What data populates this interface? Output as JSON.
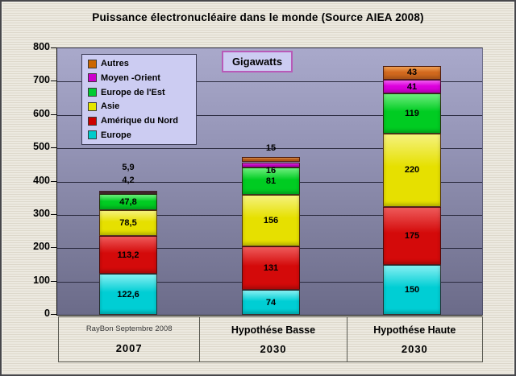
{
  "chart_data": {
    "type": "bar",
    "subtype": "stacked-vertical",
    "title": "Puissance électronucléaire dans le monde (Source AIEA 2008)",
    "unit_label": "Gigawatts",
    "ylim": [
      0,
      800
    ],
    "ytick_step": 100,
    "grid": "horizontal",
    "legend_position": "top-left-inside",
    "legend": [
      {
        "name": "Autres",
        "color": "#cc6600"
      },
      {
        "name": "Moyen -Orient",
        "color": "#cc00cc"
      },
      {
        "name": "Europe de l'Est",
        "color": "#00cc33"
      },
      {
        "name": "Asie",
        "color": "#e6e600"
      },
      {
        "name": "Amérique du Nord",
        "color": "#cc0000"
      },
      {
        "name": "Europe",
        "color": "#00cccc"
      }
    ],
    "palette": {
      "Autres": {
        "base": "#d2691e",
        "light": "#f0a055"
      },
      "Moyen -Orient": {
        "base": "#dd00dd",
        "light": "#f челов060f0"
      },
      "Europe de l'Est": {
        "base": "#00cc22",
        "light": "#6dee7d"
      },
      "Asie": {
        "base": "#e6e000",
        "light": "#f5f27d"
      },
      "Amérique du Nord": {
        "base": "#d40a0a",
        "light": "#ee5a5a"
      },
      "Europe": {
        "base": "#00ced4",
        "light": "#85eff2"
      }
    },
    "categories": [
      {
        "line1": "RayBon Septembre 2008",
        "line1_small": true,
        "line2": "2007"
      },
      {
        "line1": "Hypothése Basse",
        "line1_small": false,
        "line2": "2030"
      },
      {
        "line1": "Hypothése Haute",
        "line1_small": false,
        "line2": "2030"
      }
    ],
    "bars": [
      {
        "total": 372.2,
        "segments": [
          {
            "series": "Europe",
            "value": 122.6,
            "label": "122,6"
          },
          {
            "series": "Amérique du Nord",
            "value": 113.2,
            "label": "113,2"
          },
          {
            "series": "Asie",
            "value": 78.5,
            "label": "78,5"
          },
          {
            "series": "Europe de l'Est",
            "value": 47.8,
            "label": "47,8"
          },
          {
            "series": "Moyen -Orient",
            "value": 4.2,
            "label": "4,2",
            "label_dy": -16
          },
          {
            "series": "Autres",
            "value": 5.9,
            "label": "5,9",
            "label_dy": -30
          }
        ]
      },
      {
        "total": 473,
        "segments": [
          {
            "series": "Europe",
            "value": 74,
            "label": "74"
          },
          {
            "series": "Amérique du Nord",
            "value": 131,
            "label": "131"
          },
          {
            "series": "Asie",
            "value": 156,
            "label": "156"
          },
          {
            "series": "Europe de l'Est",
            "value": 81,
            "label": "81"
          },
          {
            "series": "Moyen -Orient",
            "value": 16,
            "label": "16",
            "label_dy": 7
          },
          {
            "series": "Autres",
            "value": 15,
            "label": "15",
            "label_dy": -14
          }
        ]
      },
      {
        "total": 748,
        "segments": [
          {
            "series": "Europe",
            "value": 150,
            "label": "150"
          },
          {
            "series": "Amérique du Nord",
            "value": 175,
            "label": "175"
          },
          {
            "series": "Asie",
            "value": 220,
            "label": "220"
          },
          {
            "series": "Europe de l'Est",
            "value": 119,
            "label": "119"
          },
          {
            "series": "Moyen -Orient",
            "value": 41,
            "label": "41"
          },
          {
            "series": "Autres",
            "value": 43,
            "label": "43"
          }
        ]
      }
    ],
    "colors": {
      "plot_bg_top": "#a9a9cb",
      "plot_bg_bottom": "#6b6b89",
      "gridline": "#2c2c40",
      "page_bg": "#e6e2d8",
      "legend_bg": "#ccccf2",
      "gigawatts_border": "#b85ab8"
    }
  }
}
